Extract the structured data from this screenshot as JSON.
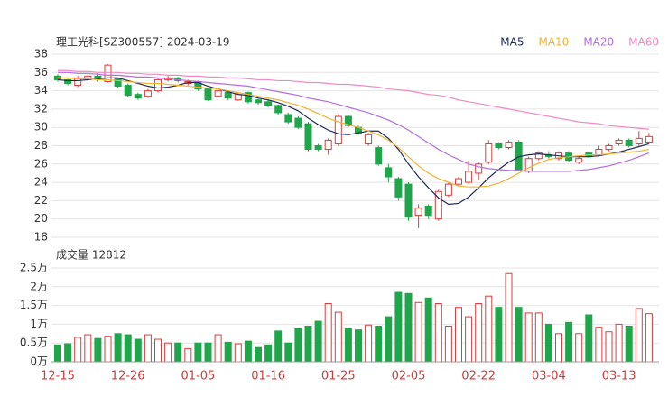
{
  "chart_data": [
    {
      "type": "candlestick",
      "title": "理工光科[SZ300557] 2024-03-19",
      "ylim": [
        18,
        38
      ],
      "yticks": [
        18,
        20,
        22,
        24,
        26,
        28,
        30,
        32,
        34,
        36,
        38
      ],
      "grid": true,
      "up_color": "#e03a3a",
      "down_color": "#1fa64a",
      "legend": "top-right",
      "open": [
        35.6,
        35.2,
        34.6,
        35.2,
        35.6,
        35.0,
        35.3,
        34.6,
        33.6,
        33.4,
        34.0,
        35.2,
        35.4,
        34.8,
        35.0,
        34.2,
        33.4,
        33.8,
        33.0,
        33.8,
        33.0,
        32.8,
        32.4,
        31.4,
        31.0,
        30.4,
        28.0,
        27.6,
        28.2,
        31.2,
        30.0,
        28.2,
        27.8,
        25.6,
        24.4,
        23.8,
        20.4,
        21.4,
        20.0,
        22.6,
        23.8,
        24.0,
        25.0,
        26.2,
        28.2,
        27.8,
        28.4,
        25.2,
        26.6,
        27.0,
        26.6,
        27.2,
        26.2,
        27.2,
        27.0,
        27.6,
        28.2,
        28.6,
        28.2,
        28.4
      ],
      "close": [
        35.2,
        34.8,
        35.4,
        35.6,
        35.3,
        36.8,
        34.5,
        33.5,
        33.2,
        34.0,
        35.2,
        35.4,
        35.1,
        35.0,
        34.2,
        33.0,
        34.0,
        33.2,
        33.6,
        32.8,
        32.7,
        32.4,
        31.6,
        30.6,
        30.0,
        27.6,
        27.6,
        28.6,
        31.2,
        30.2,
        29.4,
        29.2,
        26.0,
        24.6,
        22.4,
        20.2,
        21.2,
        20.4,
        23.0,
        23.8,
        24.4,
        25.2,
        26.0,
        28.2,
        27.8,
        28.4,
        25.4,
        26.6,
        27.2,
        26.8,
        27.2,
        26.4,
        26.6,
        26.8,
        27.6,
        28.0,
        28.6,
        28.0,
        28.8,
        29.0
      ],
      "high": [
        35.8,
        35.3,
        35.6,
        35.8,
        35.9,
        36.9,
        35.4,
        34.8,
        33.8,
        34.2,
        35.4,
        35.6,
        35.5,
        35.2,
        35.1,
        34.3,
        34.2,
        33.9,
        33.8,
        33.9,
        33.1,
        33.0,
        32.5,
        31.6,
        31.2,
        30.6,
        28.2,
        28.8,
        31.4,
        31.4,
        30.2,
        29.4,
        28.0,
        26.0,
        24.6,
        24.0,
        21.6,
        21.6,
        23.2,
        24.0,
        24.6,
        26.4,
        26.2,
        28.6,
        28.4,
        28.6,
        28.6,
        26.8,
        27.4,
        27.4,
        27.4,
        27.4,
        26.8,
        27.4,
        28.0,
        28.2,
        28.8,
        28.8,
        29.6,
        29.4
      ],
      "low": [
        35.0,
        34.6,
        34.4,
        35.0,
        35.0,
        34.9,
        34.3,
        33.3,
        33.0,
        33.2,
        33.8,
        35.0,
        34.9,
        34.6,
        34.0,
        32.9,
        33.2,
        33.0,
        32.9,
        32.6,
        32.5,
        32.2,
        31.4,
        30.4,
        29.8,
        27.4,
        27.4,
        27.0,
        28.0,
        30.0,
        29.2,
        28.0,
        25.8,
        24.0,
        22.0,
        19.8,
        19.0,
        20.0,
        19.8,
        22.4,
        23.6,
        23.8,
        24.2,
        26.0,
        27.6,
        27.6,
        25.2,
        25.0,
        26.4,
        26.6,
        26.4,
        26.2,
        26.0,
        26.6,
        26.8,
        27.4,
        28.0,
        27.8,
        28.0,
        28.2
      ],
      "series": [
        {
          "name": "MA5",
          "color": "#1e2a5e",
          "values": [
            35.2,
            35.1,
            35.1,
            35.2,
            35.3,
            35.4,
            35.4,
            35.1,
            34.8,
            34.5,
            34.3,
            34.4,
            34.6,
            34.9,
            34.9,
            34.5,
            34.2,
            33.9,
            33.6,
            33.5,
            33.2,
            33.0,
            32.7,
            32.3,
            31.8,
            31.0,
            30.3,
            29.7,
            29.3,
            29.2,
            29.4,
            29.6,
            29.6,
            28.8,
            27.6,
            26.0,
            24.6,
            23.4,
            22.3,
            21.6,
            21.7,
            22.4,
            23.4,
            24.5,
            25.4,
            26.2,
            26.8,
            27.0,
            27.1,
            27.0,
            26.9,
            26.8,
            26.8,
            26.8,
            26.9,
            27.1,
            27.3,
            27.6,
            27.9,
            28.2
          ]
        },
        {
          "name": "MA10",
          "color": "#f2b233",
          "values": [
            35.4,
            35.4,
            35.3,
            35.3,
            35.2,
            35.2,
            35.1,
            35.0,
            34.9,
            34.8,
            34.8,
            34.7,
            34.6,
            34.5,
            34.4,
            34.3,
            34.2,
            34.0,
            33.8,
            33.6,
            33.4,
            33.2,
            33.0,
            32.7,
            32.4,
            32.0,
            31.5,
            31.0,
            30.6,
            30.3,
            30.0,
            29.6,
            29.2,
            28.6,
            27.8,
            26.8,
            25.8,
            25.0,
            24.4,
            24.0,
            23.6,
            23.5,
            23.5,
            23.6,
            23.9,
            24.4,
            25.0,
            25.6,
            26.1,
            26.5,
            26.7,
            26.8,
            26.9,
            27.0,
            27.0,
            27.1,
            27.2,
            27.3,
            27.4,
            27.6
          ]
        },
        {
          "name": "MA20",
          "color": "#b46ee0",
          "values": [
            36.0,
            36.0,
            35.9,
            35.9,
            35.8,
            35.7,
            35.7,
            35.6,
            35.5,
            35.5,
            35.4,
            35.3,
            35.2,
            35.1,
            35.0,
            34.9,
            34.8,
            34.7,
            34.6,
            34.5,
            34.3,
            34.1,
            33.9,
            33.7,
            33.5,
            33.2,
            33.0,
            32.8,
            32.5,
            32.2,
            31.9,
            31.6,
            31.2,
            30.8,
            30.3,
            29.7,
            29.0,
            28.3,
            27.6,
            27.0,
            26.5,
            26.0,
            25.7,
            25.5,
            25.4,
            25.3,
            25.3,
            25.2,
            25.2,
            25.2,
            25.2,
            25.2,
            25.3,
            25.4,
            25.6,
            25.8,
            26.1,
            26.4,
            26.8,
            27.2
          ]
        },
        {
          "name": "MA60",
          "color": "#f08ac4",
          "values": [
            36.2,
            36.2,
            36.1,
            36.1,
            36.0,
            36.0,
            36.0,
            35.9,
            35.9,
            35.8,
            35.8,
            35.7,
            35.7,
            35.6,
            35.6,
            35.5,
            35.5,
            35.4,
            35.4,
            35.3,
            35.2,
            35.2,
            35.1,
            35.1,
            35.0,
            34.9,
            34.9,
            34.8,
            34.7,
            34.7,
            34.6,
            34.5,
            34.4,
            34.2,
            34.1,
            34.0,
            33.8,
            33.6,
            33.5,
            33.3,
            33.0,
            32.8,
            32.6,
            32.4,
            32.2,
            32.0,
            31.8,
            31.6,
            31.4,
            31.2,
            31.0,
            30.8,
            30.6,
            30.5,
            30.4,
            30.2,
            30.1,
            30.0,
            29.9,
            29.8
          ]
        }
      ]
    },
    {
      "type": "bar",
      "title": "成交量 12812",
      "ylim": [
        0,
        2.5
      ],
      "yticks": [
        {
          "value": 0,
          "label": "0万"
        },
        {
          "value": 0.5,
          "label": "0.5万"
        },
        {
          "value": 1,
          "label": "1万"
        },
        {
          "value": 1.5,
          "label": "1.5万"
        },
        {
          "value": 2,
          "label": "2万"
        },
        {
          "value": 2.5,
          "label": "2.5万"
        }
      ],
      "grid": true,
      "categories": [
        "12-15",
        null,
        null,
        null,
        null,
        null,
        null,
        "12-26",
        null,
        null,
        null,
        null,
        null,
        null,
        "01-05",
        null,
        null,
        null,
        null,
        null,
        null,
        "01-16",
        null,
        null,
        null,
        null,
        null,
        null,
        "01-25",
        null,
        null,
        null,
        null,
        null,
        null,
        "02-05",
        null,
        null,
        null,
        null,
        null,
        null,
        "02-22",
        null,
        null,
        null,
        null,
        null,
        null,
        "03-04",
        null,
        null,
        null,
        null,
        null,
        null,
        "03-13",
        null,
        null,
        null
      ],
      "values": [
        0.45,
        0.48,
        0.65,
        0.72,
        0.62,
        0.68,
        0.75,
        0.72,
        0.6,
        0.72,
        0.6,
        0.5,
        0.5,
        0.35,
        0.5,
        0.5,
        0.72,
        0.52,
        0.48,
        0.55,
        0.38,
        0.45,
        0.82,
        0.5,
        0.88,
        0.95,
        1.08,
        1.55,
        1.32,
        0.88,
        0.85,
        0.98,
        0.95,
        1.2,
        1.85,
        1.82,
        1.58,
        1.7,
        1.55,
        0.95,
        1.45,
        1.2,
        1.55,
        1.75,
        1.45,
        2.35,
        1.45,
        1.3,
        1.3,
        1.0,
        0.75,
        1.05,
        0.75,
        1.25,
        0.92,
        0.8,
        1.0,
        0.95,
        1.42,
        1.2812
      ]
    }
  ]
}
